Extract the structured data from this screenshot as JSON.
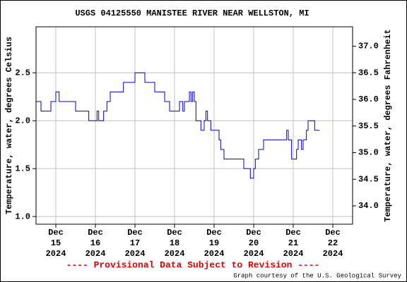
{
  "chart_data": {
    "type": "line",
    "title": "USGS 04125550 MANISTEE RIVER NEAR WELLSTON, MI",
    "y_label": "Temperature, water, degrees Celsius",
    "y2_label": "Temperature, water, degrees Fahrenheit",
    "annotation": "---- Provisional Data Subject to Revision ----",
    "credit": "Graph courtesy of the U.S. Geological Survey",
    "grid": true,
    "xlim": [
      "2024-12-14T12:00",
      "2024-12-22T12:00"
    ],
    "xticks": [
      {
        "value": "2024-12-15T00:00",
        "label": "Dec\n15\n2024"
      },
      {
        "value": "2024-12-16T00:00",
        "label": "Dec\n16\n2024"
      },
      {
        "value": "2024-12-17T00:00",
        "label": "Dec\n17\n2024"
      },
      {
        "value": "2024-12-18T00:00",
        "label": "Dec\n18\n2024"
      },
      {
        "value": "2024-12-19T00:00",
        "label": "Dec\n19\n2024"
      },
      {
        "value": "2024-12-20T00:00",
        "label": "Dec\n20\n2024"
      },
      {
        "value": "2024-12-21T00:00",
        "label": "Dec\n21\n2024"
      },
      {
        "value": "2024-12-22T00:00",
        "label": "Dec\n22\n2024"
      }
    ],
    "ylim": [
      0.92,
      2.98
    ],
    "yticks": [
      {
        "value": 1,
        "label": "1.0"
      },
      1.5,
      {
        "value": 2,
        "label": "2.0"
      },
      2.5
    ],
    "y2lim": [
      33.656,
      37.364
    ],
    "y2ticks": [
      {
        "value": 34,
        "label": "34.0"
      },
      34.5,
      {
        "value": 35,
        "label": "35.0"
      },
      35.5,
      {
        "value": 36,
        "label": "36.0"
      },
      36.5,
      {
        "value": 37,
        "label": "37.0"
      }
    ],
    "x": [
      "2024-12-14T12:00",
      "2024-12-14T15:00",
      "2024-12-14T21:00",
      "2024-12-15T00:00",
      "2024-12-15T02:00",
      "2024-12-15T12:00",
      "2024-12-15T20:00",
      "2024-12-16T01:00",
      "2024-12-16T02:00",
      "2024-12-16T05:00",
      "2024-12-16T07:00",
      "2024-12-16T09:00",
      "2024-12-16T17:00",
      "2024-12-17T00:00",
      "2024-12-17T06:00",
      "2024-12-17T12:00",
      "2024-12-17T18:00",
      "2024-12-17T21:00",
      "2024-12-18T03:00",
      "2024-12-18T05:00",
      "2024-12-18T06:00",
      "2024-12-18T09:00",
      "2024-12-18T10:00",
      "2024-12-18T11:00",
      "2024-12-18T12:00",
      "2024-12-18T13:00",
      "2024-12-18T16:00",
      "2024-12-18T18:00",
      "2024-12-18T19:00",
      "2024-12-18T20:00",
      "2024-12-18T22:00",
      "2024-12-19T03:00",
      "2024-12-19T04:00",
      "2024-12-19T06:00",
      "2024-12-19T18:00",
      "2024-12-19T22:00",
      "2024-12-20T00:00",
      "2024-12-20T01:00",
      "2024-12-20T03:00",
      "2024-12-20T06:00",
      "2024-12-20T20:00",
      "2024-12-20T21:00",
      "2024-12-20T23:00",
      "2024-12-21T02:00",
      "2024-12-21T03:00",
      "2024-12-21T05:00",
      "2024-12-21T06:00",
      "2024-12-21T08:00",
      "2024-12-21T09:00",
      "2024-12-21T13:00",
      "2024-12-21T16:00"
    ],
    "series": [
      {
        "color": "#0000cc",
        "values": [
          2.2,
          2.1,
          2.2,
          2.3,
          2.2,
          2.1,
          2.0,
          2.1,
          2.0,
          2.1,
          2.2,
          2.3,
          2.4,
          2.5,
          2.4,
          2.3,
          2.2,
          2.1,
          2.2,
          2.1,
          2.2,
          2.3,
          2.2,
          2.3,
          2.2,
          2.0,
          1.9,
          2.0,
          2.1,
          2.0,
          1.9,
          1.8,
          1.7,
          1.6,
          1.5,
          1.4,
          1.5,
          1.6,
          1.7,
          1.8,
          1.9,
          1.8,
          1.6,
          1.7,
          1.8,
          1.7,
          1.8,
          1.9,
          2.0,
          1.9,
          1.9
        ]
      }
    ]
  }
}
